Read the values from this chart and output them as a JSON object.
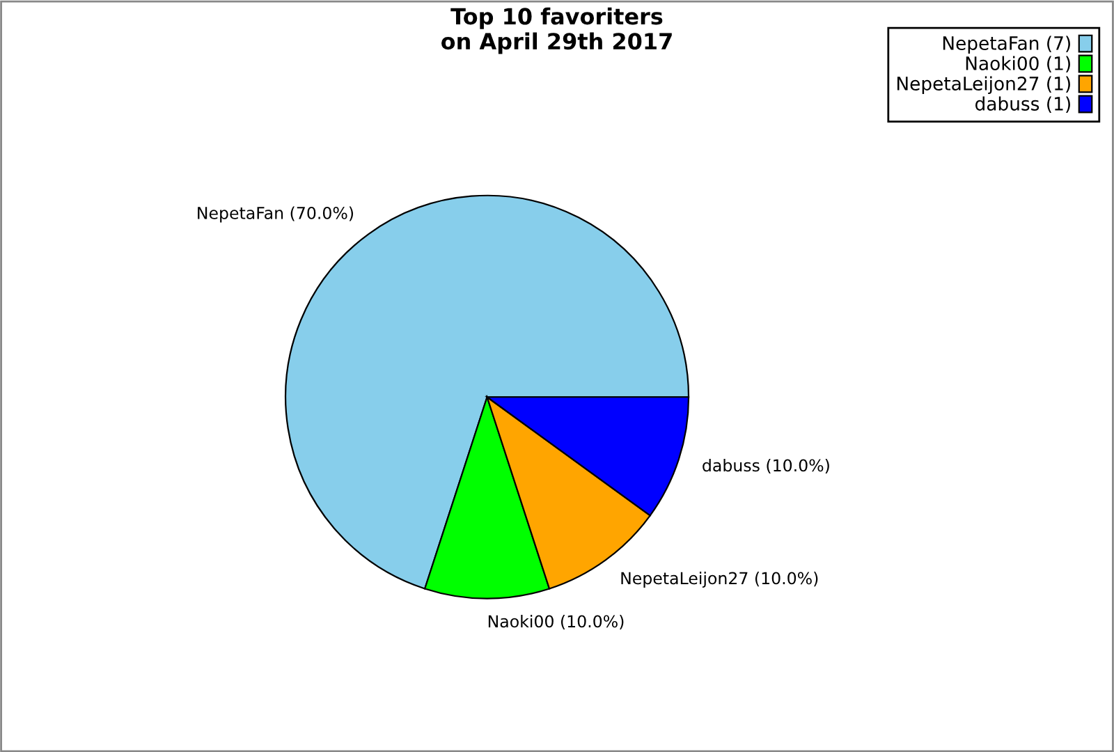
{
  "chart_data": {
    "type": "pie",
    "title": "Top 10 favoriters\non April 29th 2017",
    "categories": [
      "NepetaFan (7)",
      "Naoki00 (1)",
      "NepetaLeijon27 (1)",
      "dabuss (1)"
    ],
    "values": [
      70,
      10,
      10,
      10
    ],
    "colors": [
      "#87ceeb",
      "#00ff00",
      "#ffa500",
      "#0000ff"
    ],
    "value_labels": [
      "NepetaFan (70.0%)",
      "Naoki00 (10.0%)",
      "NepetaLeijon27 (10.0%)",
      "dabuss (10.0%)"
    ],
    "legend": "top right"
  }
}
